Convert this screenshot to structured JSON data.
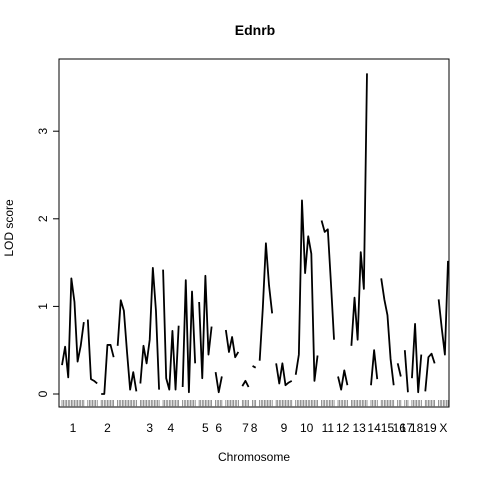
{
  "chart_data": {
    "type": "line",
    "title": "Ednrb",
    "xlabel": "Chromosome",
    "ylabel": "LOD score",
    "ylim": [
      0,
      3.8
    ],
    "yticks": [
      0,
      1,
      2,
      3
    ],
    "grid": false,
    "legend": "none",
    "line_color": "#000000",
    "chromosomes": [
      {
        "name": "1",
        "values": [
          0.33,
          0.54,
          0.19,
          1.32,
          1.05,
          0.37,
          0.55,
          0.82
        ]
      },
      {
        "name": "",
        "values": [
          0.85,
          0.17,
          0.15,
          0.12
        ]
      },
      {
        "name": "2",
        "values": [
          0.0,
          0.0,
          0.56,
          0.56,
          0.42
        ]
      },
      {
        "name": "",
        "values": [
          0.55,
          1.07,
          0.95,
          0.48,
          0.05,
          0.25,
          0.03
        ]
      },
      {
        "name": "3",
        "values": [
          0.12,
          0.55,
          0.35,
          0.62,
          1.44,
          0.95,
          0.05
        ]
      },
      {
        "name": "4",
        "values": [
          1.42,
          0.18,
          0.05,
          0.72,
          0.05,
          0.78
        ]
      },
      {
        "name": "",
        "values": [
          0.08,
          1.3,
          0.02,
          1.17,
          0.35
        ]
      },
      {
        "name": "5",
        "values": [
          1.05,
          0.18,
          1.35,
          0.45,
          0.77
        ]
      },
      {
        "name": "6",
        "values": [
          0.25,
          0.02,
          0.2
        ]
      },
      {
        "name": "",
        "values": [
          0.73,
          0.48,
          0.65,
          0.42,
          0.48
        ]
      },
      {
        "name": "7",
        "values": [
          0.09,
          0.15,
          0.08
        ]
      },
      {
        "name": "8",
        "values": [
          0.32,
          0.3
        ]
      },
      {
        "name": "",
        "values": [
          0.38,
          0.98,
          1.72,
          1.24,
          0.92
        ]
      },
      {
        "name": "9",
        "values": [
          0.35,
          0.12,
          0.35,
          0.1,
          0.13,
          0.15
        ]
      },
      {
        "name": "10",
        "values": [
          0.22,
          0.45,
          2.21,
          1.38,
          1.8,
          1.6,
          0.15,
          0.44
        ]
      },
      {
        "name": "11",
        "values": [
          1.98,
          1.85,
          1.88,
          1.27,
          0.62
        ]
      },
      {
        "name": "12",
        "values": [
          0.2,
          0.05,
          0.27,
          0.1
        ]
      },
      {
        "name": "13",
        "values": [
          0.55,
          1.1,
          0.62,
          1.62,
          1.2,
          3.66
        ]
      },
      {
        "name": "14",
        "values": [
          0.1,
          0.5,
          0.17
        ]
      },
      {
        "name": "15",
        "values": [
          1.32,
          1.08,
          0.9,
          0.4,
          0.1
        ]
      },
      {
        "name": "16",
        "values": [
          0.35,
          0.2
        ]
      },
      {
        "name": "17",
        "values": [
          0.5,
          0.02
        ]
      },
      {
        "name": "18",
        "values": [
          0.18,
          0.8,
          0.02,
          0.45
        ]
      },
      {
        "name": "19",
        "values": [
          0.03,
          0.42,
          0.46,
          0.35
        ]
      },
      {
        "name": "X",
        "values": [
          1.08,
          0.75,
          0.45,
          1.52
        ]
      }
    ],
    "axis_labels": [
      "1",
      "2",
      "3",
      "4",
      "5",
      "6",
      "7",
      "8",
      "9",
      "10",
      "11",
      "12",
      "13",
      "14",
      "15",
      "16",
      "17",
      "18",
      "19",
      "X"
    ]
  }
}
